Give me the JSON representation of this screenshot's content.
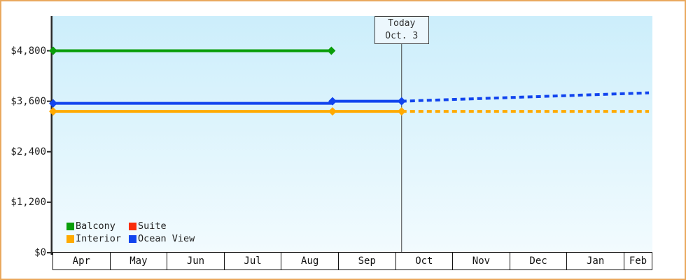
{
  "colors": {
    "frame_border": "#e9a85e",
    "plot_bg_top": "#cceefb",
    "plot_bg_bottom": "#f2fbfe",
    "axis": "#2b2b2b",
    "table_border": "#111111",
    "text": "#1a1a1a",
    "today_line": "#444444",
    "today_box_bg": "#ecf7fd"
  },
  "chart_data": {
    "type": "line",
    "title": "",
    "x_axis": {
      "months": [
        "Apr",
        "May",
        "Jun",
        "Jul",
        "Aug",
        "Sep",
        "Oct",
        "Nov",
        "Dec",
        "Jan",
        "Feb"
      ],
      "note": "x unit = months since left edge (Apr); last Feb cell truncated at plot right edge"
    },
    "y_axis": {
      "ticks": [
        {
          "value": 0,
          "label": "$0"
        },
        {
          "value": 1200,
          "label": "$1,200"
        },
        {
          "value": 2400,
          "label": "$2,400"
        },
        {
          "value": 3600,
          "label": "$3,600"
        },
        {
          "value": 4800,
          "label": "$4,800"
        }
      ],
      "ylim": [
        0,
        5624
      ],
      "grid": false
    },
    "series": [
      {
        "name": "Balcony",
        "color": "#0a9e0a",
        "solid": [
          [
            0,
            4800
          ],
          [
            4.87,
            4800
          ]
        ],
        "dashed": [],
        "markers": [
          [
            0,
            4800
          ],
          [
            4.87,
            4800
          ]
        ]
      },
      {
        "name": "Suite",
        "color": "#f92c0a",
        "solid": [],
        "dashed": [],
        "markers": []
      },
      {
        "name": "Interior",
        "color": "#ffaa00",
        "solid": [
          [
            0,
            3360
          ],
          [
            6.1,
            3360
          ]
        ],
        "dashed": [
          [
            6.1,
            3360
          ],
          [
            10.43,
            3360
          ]
        ],
        "markers": [
          [
            0,
            3360
          ],
          [
            4.89,
            3360
          ],
          [
            6.1,
            3360
          ]
        ]
      },
      {
        "name": "Ocean View",
        "color": "#1144ee",
        "solid": [
          [
            0,
            3550
          ],
          [
            4.89,
            3550
          ],
          [
            4.89,
            3600
          ],
          [
            6.1,
            3600
          ]
        ],
        "dashed": [
          [
            6.1,
            3600
          ],
          [
            10.43,
            3800
          ]
        ],
        "markers": [
          [
            0,
            3550
          ],
          [
            4.89,
            3600
          ],
          [
            6.1,
            3600
          ]
        ]
      }
    ],
    "today": {
      "x": 6.1,
      "line1": "Today",
      "line2": "Oct. 3"
    },
    "legend": {
      "position": "bottom-left",
      "rows": [
        [
          "Balcony",
          "Suite"
        ],
        [
          "Interior",
          "Ocean View"
        ]
      ]
    }
  }
}
